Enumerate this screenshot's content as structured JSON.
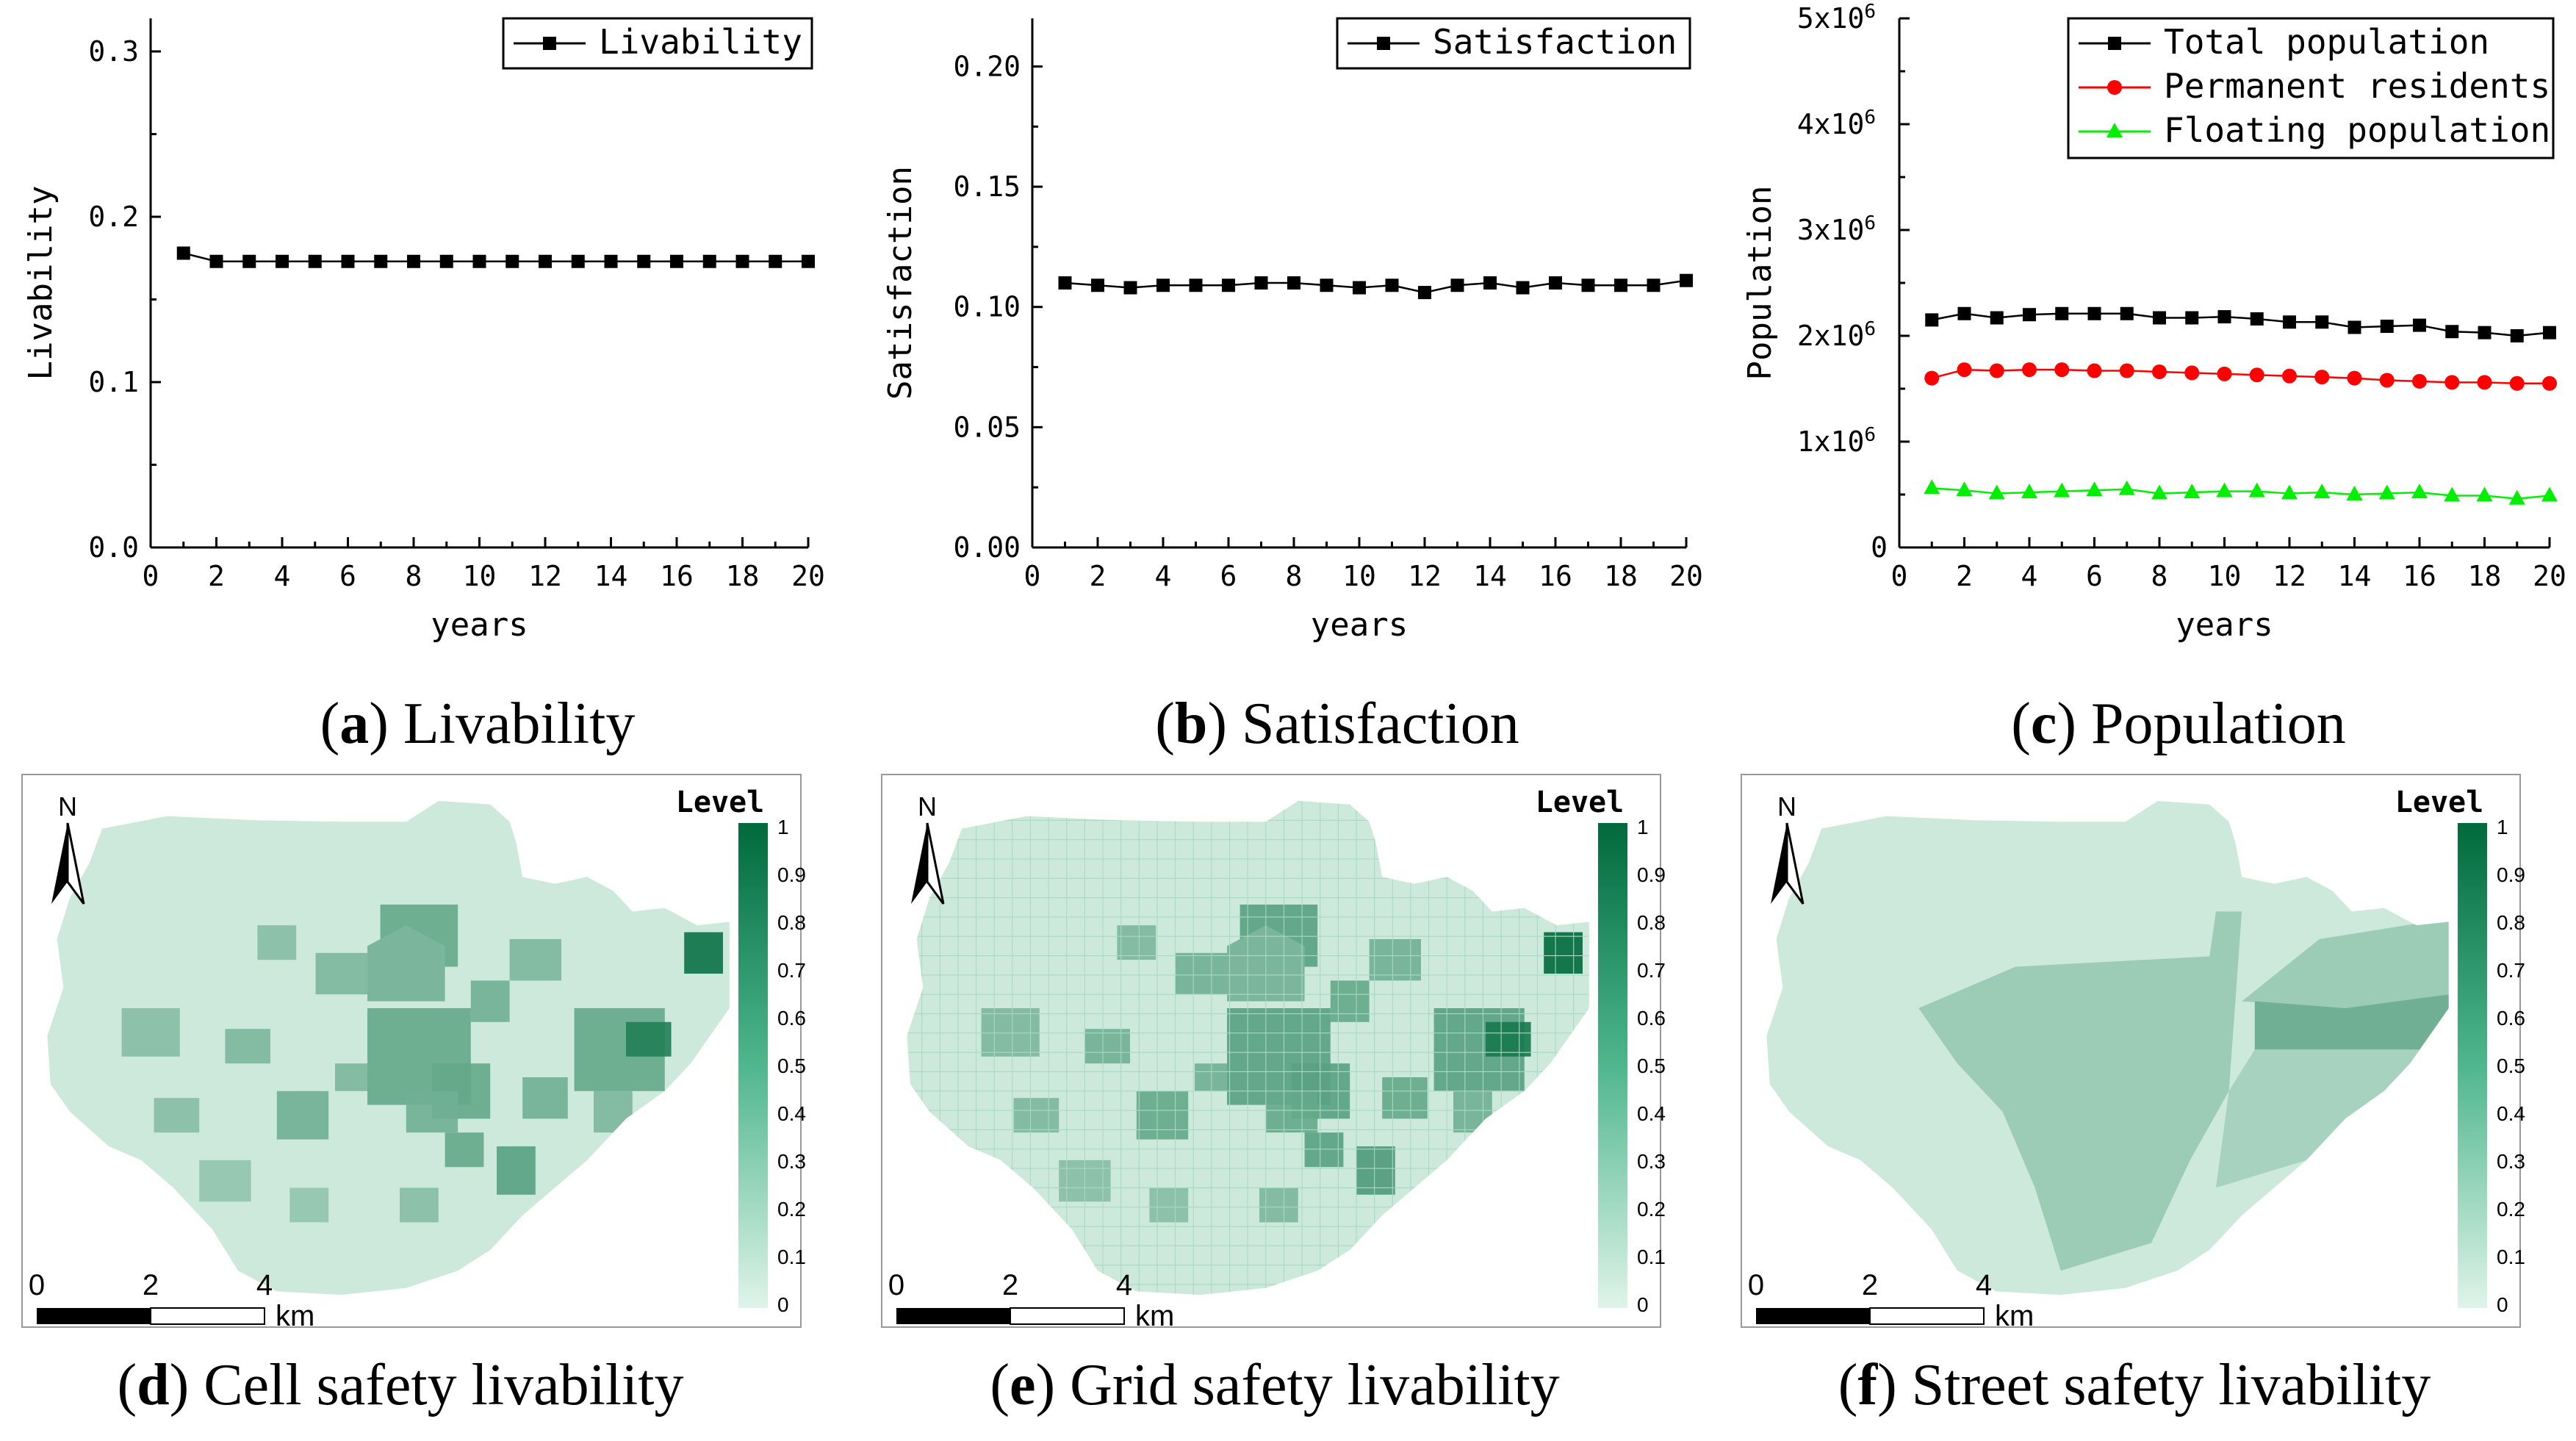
{
  "chart_data": [
    {
      "id": "a",
      "type": "line",
      "xlabel": "years",
      "ylabel": "Livability",
      "xlim": [
        0,
        20
      ],
      "ylim": [
        0,
        0.32
      ],
      "xticks": [
        "0",
        "2",
        "4",
        "6",
        "8",
        "10",
        "12",
        "14",
        "16",
        "18",
        "20"
      ],
      "yticks": [
        "0.0",
        "0.1",
        "0.2",
        "0.3"
      ],
      "x": [
        1,
        2,
        3,
        4,
        5,
        6,
        7,
        8,
        9,
        10,
        11,
        12,
        13,
        14,
        15,
        16,
        17,
        18,
        19,
        20
      ],
      "series": [
        {
          "name": "Livability",
          "color": "#000000",
          "marker": "square",
          "values": [
            0.178,
            0.173,
            0.173,
            0.173,
            0.173,
            0.173,
            0.173,
            0.173,
            0.173,
            0.173,
            0.173,
            0.173,
            0.173,
            0.173,
            0.173,
            0.173,
            0.173,
            0.173,
            0.173,
            0.173
          ]
        }
      ],
      "legend": "top-right",
      "caption_letter": "a",
      "caption_text": " Livability"
    },
    {
      "id": "b",
      "type": "line",
      "xlabel": "years",
      "ylabel": "Satisfaction",
      "xlim": [
        0,
        20
      ],
      "ylim": [
        0,
        0.22
      ],
      "xticks": [
        "0",
        "2",
        "4",
        "6",
        "8",
        "10",
        "12",
        "14",
        "16",
        "18",
        "20"
      ],
      "yticks": [
        "0.00",
        "0.05",
        "0.10",
        "0.15",
        "0.20"
      ],
      "x": [
        1,
        2,
        3,
        4,
        5,
        6,
        7,
        8,
        9,
        10,
        11,
        12,
        13,
        14,
        15,
        16,
        17,
        18,
        19,
        20
      ],
      "series": [
        {
          "name": "Satisfaction",
          "color": "#000000",
          "marker": "square",
          "values": [
            0.11,
            0.109,
            0.108,
            0.109,
            0.109,
            0.109,
            0.11,
            0.11,
            0.109,
            0.108,
            0.109,
            0.106,
            0.109,
            0.11,
            0.108,
            0.11,
            0.109,
            0.109,
            0.109,
            0.111
          ]
        }
      ],
      "legend": "top-right",
      "caption_letter": "b",
      "caption_text": " Satisfaction"
    },
    {
      "id": "c",
      "type": "line",
      "xlabel": "years",
      "ylabel": "Population",
      "xlim": [
        0,
        20
      ],
      "ylim": [
        0,
        5000000
      ],
      "xticks": [
        "0",
        "2",
        "4",
        "6",
        "8",
        "10",
        "12",
        "14",
        "16",
        "18",
        "20"
      ],
      "yticks": [
        "0",
        "1x10",
        "2x10",
        "3x10",
        "4x10",
        "5x10"
      ],
      "ytick_exponent": "6",
      "x": [
        1,
        2,
        3,
        4,
        5,
        6,
        7,
        8,
        9,
        10,
        11,
        12,
        13,
        14,
        15,
        16,
        17,
        18,
        19,
        20
      ],
      "series": [
        {
          "name": "Total population",
          "color": "#000000",
          "marker": "square",
          "values": [
            2150000,
            2210000,
            2170000,
            2200000,
            2210000,
            2210000,
            2210000,
            2170000,
            2170000,
            2180000,
            2160000,
            2130000,
            2130000,
            2080000,
            2090000,
            2100000,
            2040000,
            2030000,
            2000000,
            2030000
          ]
        },
        {
          "name": "Permanent residents",
          "color": "#ff0000",
          "marker": "circle",
          "values": [
            1600000,
            1680000,
            1670000,
            1680000,
            1680000,
            1670000,
            1670000,
            1660000,
            1650000,
            1640000,
            1630000,
            1620000,
            1610000,
            1600000,
            1580000,
            1570000,
            1560000,
            1560000,
            1550000,
            1550000
          ]
        },
        {
          "name": "Floating population",
          "color": "#00ee00",
          "marker": "triangle",
          "values": [
            560000,
            540000,
            510000,
            520000,
            530000,
            540000,
            550000,
            510000,
            520000,
            530000,
            530000,
            510000,
            520000,
            500000,
            510000,
            520000,
            490000,
            490000,
            460000,
            490000
          ]
        }
      ],
      "legend": "top-right",
      "caption_letter": "c",
      "caption_text": " Population"
    }
  ],
  "maps": [
    {
      "id": "d",
      "caption_letter": "d",
      "caption_text": " Cell safety livability"
    },
    {
      "id": "e",
      "caption_letter": "e",
      "caption_text": " Grid safety livability"
    },
    {
      "id": "f",
      "caption_letter": "f",
      "caption_text": " Street safety livability"
    }
  ],
  "map_common": {
    "north": "N",
    "legend_title": "Level",
    "legend_ticks": [
      "1",
      "0.9",
      "0.8",
      "0.7",
      "0.6",
      "0.5",
      "0.4",
      "0.3",
      "0.2",
      "0.1",
      "0"
    ],
    "scale_labels": [
      "0",
      "2",
      "4"
    ],
    "scale_unit": "km",
    "low_color": "#dff4ea",
    "high_color": "#006a3c"
  }
}
